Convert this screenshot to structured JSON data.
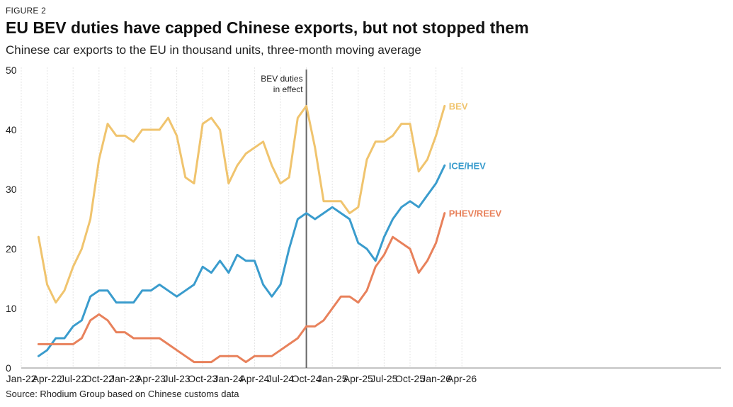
{
  "figure_label": "FIGURE 2",
  "title": "EU BEV duties have capped Chinese exports, but not stopped them",
  "subtitle": "Chinese car exports to the EU in thousand units, three-month moving average",
  "source": "Source: Rhodium Group based on Chinese customs data",
  "colors": {
    "BEV": "#f0c46e",
    "ICE/HEV": "#3a9ccd",
    "PHEV/REEV": "#e8815b",
    "marker": "#666666",
    "axis": "#888888"
  },
  "chart_data": {
    "type": "line",
    "ylim": [
      0,
      50
    ],
    "yticks": [
      "0",
      "10",
      "20",
      "30",
      "40",
      "50"
    ],
    "xlim": [
      "2022-01",
      "2026-04"
    ],
    "xticks": [
      "Jan-22",
      "Apr-22",
      "Jul-22",
      "Oct-22",
      "Jan-23",
      "Apr-23",
      "Jul-23",
      "Oct-23",
      "Jan-24",
      "Apr-24",
      "Jul-24",
      "Oct-24",
      "Jan-25",
      "Apr-25",
      "Jul-25",
      "Oct-25",
      "Jan-26",
      "Apr-26"
    ],
    "x": [
      "2022-03",
      "2022-04",
      "2022-05",
      "2022-06",
      "2022-07",
      "2022-08",
      "2022-09",
      "2022-10",
      "2022-11",
      "2022-12",
      "2023-01",
      "2023-02",
      "2023-03",
      "2023-04",
      "2023-05",
      "2023-06",
      "2023-07",
      "2023-08",
      "2023-09",
      "2023-10",
      "2023-11",
      "2023-12",
      "2024-01",
      "2024-02",
      "2024-03",
      "2024-04",
      "2024-05",
      "2024-06",
      "2024-07",
      "2024-08",
      "2024-09",
      "2024-10",
      "2024-11",
      "2024-12",
      "2025-01",
      "2025-02",
      "2025-03",
      "2025-04",
      "2025-05",
      "2025-06",
      "2025-07",
      "2025-08",
      "2025-09",
      "2025-10",
      "2025-11",
      "2025-12",
      "2026-01",
      "2026-02"
    ],
    "series": [
      {
        "name": "BEV",
        "values": [
          22,
          14,
          11,
          13,
          17,
          20,
          25,
          35,
          41,
          39,
          39,
          38,
          40,
          40,
          40,
          42,
          39,
          32,
          31,
          41,
          42,
          40,
          31,
          34,
          36,
          37,
          38,
          34,
          31,
          32,
          42,
          44,
          37,
          28,
          28,
          28,
          26,
          27,
          35,
          38,
          38,
          39,
          41,
          41,
          33,
          35,
          39,
          44
        ]
      },
      {
        "name": "ICE/HEV",
        "values": [
          2,
          3,
          5,
          5,
          7,
          8,
          12,
          13,
          13,
          11,
          11,
          11,
          13,
          13,
          14,
          13,
          12,
          13,
          14,
          17,
          16,
          18,
          16,
          19,
          18,
          18,
          14,
          12,
          14,
          20,
          25,
          26,
          25,
          26,
          27,
          26,
          25,
          21,
          20,
          18,
          22,
          25,
          27,
          28,
          27,
          29,
          31,
          34
        ]
      },
      {
        "name": "PHEV/REEV",
        "values": [
          4,
          4,
          4,
          4,
          4,
          5,
          8,
          9,
          8,
          6,
          6,
          5,
          5,
          5,
          5,
          4,
          3,
          2,
          1,
          1,
          1,
          2,
          2,
          2,
          1,
          2,
          2,
          2,
          3,
          4,
          5,
          7,
          7,
          8,
          10,
          12,
          12,
          11,
          13,
          17,
          19,
          22,
          21,
          20,
          16,
          18,
          21,
          26
        ]
      }
    ],
    "annotation": {
      "text_line1": "BEV duties",
      "text_line2": "in effect",
      "x": "2024-10"
    }
  }
}
